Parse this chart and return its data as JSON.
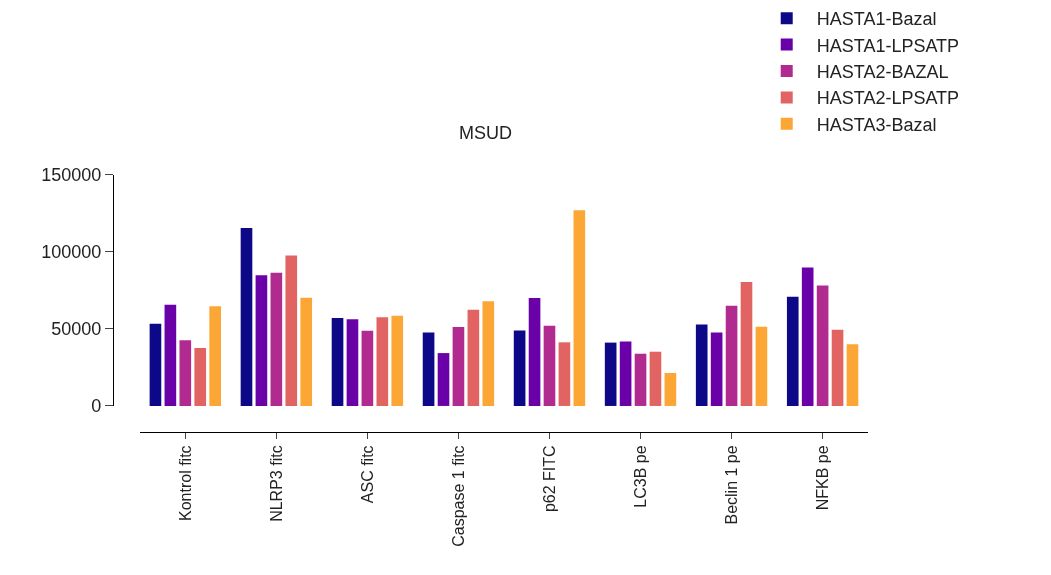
{
  "chart_data": {
    "type": "bar",
    "title": "MSUD",
    "categories": [
      "Kontrol fitc",
      "NLRP3 fitc",
      "ASC fitc",
      "Caspase 1 fitc",
      "p62 FITC",
      "LC3B pe",
      "Beclin 1 pe",
      "NFKB pe"
    ],
    "series": [
      {
        "name": "HASTA1-Bazal",
        "color": "#0d0887",
        "values": [
          53400,
          115500,
          57100,
          47700,
          49000,
          41100,
          52900,
          70800
        ]
      },
      {
        "name": "HASTA1-LPSATP",
        "color": "#6a00a8",
        "values": [
          65600,
          84800,
          56200,
          34300,
          70000,
          41800,
          47700,
          89900
        ]
      },
      {
        "name": "HASTA2-BAZAL",
        "color": "#b12a90",
        "values": [
          42600,
          86400,
          48800,
          51200,
          52000,
          33900,
          65000,
          78100
        ]
      },
      {
        "name": "HASTA2-LPSATP",
        "color": "#e16462",
        "values": [
          37600,
          97700,
          57500,
          62500,
          41300,
          35200,
          80500,
          49400
        ]
      },
      {
        "name": "HASTA3-Bazal",
        "color": "#fca636",
        "values": [
          64700,
          70200,
          58600,
          68000,
          127000,
          21400,
          51400,
          40000
        ]
      }
    ],
    "ylim": [
      0,
      150000
    ],
    "yticks": [
      0,
      50000,
      100000,
      150000
    ],
    "legend": "top right"
  }
}
